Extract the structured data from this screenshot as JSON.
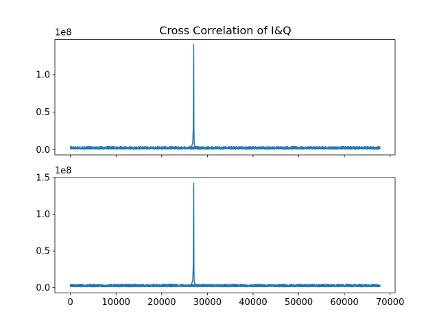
{
  "figure": {
    "title": "Cross Correlation of I&Q"
  },
  "chart_data": [
    {
      "type": "line",
      "title": "Cross Correlation of I&Q",
      "xlabel": "",
      "ylabel": "",
      "y_offset_label": "1e8",
      "y_scale": 100000000,
      "xlim": [
        -3400,
        71100
      ],
      "ylim": [
        -0.07,
        1.47
      ],
      "x_ticks": [
        0,
        10000,
        20000,
        30000,
        40000,
        50000,
        60000,
        70000
      ],
      "x_tick_labels_visible": false,
      "y_ticks": [
        0.0,
        0.5,
        1.0
      ],
      "y_tick_labels": [
        "0.0",
        "0.5",
        "1.0"
      ],
      "grid": false,
      "color": "#1f77b4",
      "series": [
        {
          "x": [
            0,
            5000,
            10000,
            15000,
            20000,
            25000,
            26000,
            26500,
            26800,
            26900,
            27000,
            27050,
            27100,
            27200,
            27500,
            28000,
            30000,
            35000,
            40000,
            45000,
            50000,
            54000,
            55000,
            60000,
            65000,
            67800
          ],
          "values": [
            0.015,
            0.025,
            0.025,
            0.025,
            0.025,
            0.025,
            0.03,
            0.04,
            0.09,
            0.28,
            1.4,
            0.28,
            0.09,
            0.05,
            0.04,
            0.03,
            0.025,
            0.025,
            0.025,
            0.025,
            0.025,
            0.035,
            0.025,
            0.025,
            0.02,
            0.015
          ],
          "noise_band": [
            0.0,
            0.05
          ]
        }
      ]
    },
    {
      "type": "line",
      "title": "",
      "xlabel": "",
      "ylabel": "",
      "y_offset_label": "1e8",
      "y_scale": 100000000,
      "xlim": [
        -3400,
        71100
      ],
      "ylim": [
        -0.07,
        1.5
      ],
      "x_ticks": [
        0,
        10000,
        20000,
        30000,
        40000,
        50000,
        60000,
        70000
      ],
      "x_tick_labels": [
        "0",
        "10000",
        "20000",
        "30000",
        "40000",
        "50000",
        "60000",
        "70000"
      ],
      "y_ticks": [
        0.0,
        0.5,
        1.0,
        1.5
      ],
      "y_tick_labels": [
        "0.0",
        "0.5",
        "1.0",
        "1.5"
      ],
      "grid": false,
      "color": "#1f77b4",
      "series": [
        {
          "x": [
            0,
            5000,
            10000,
            15000,
            20000,
            25000,
            26000,
            26500,
            26800,
            26900,
            27000,
            27050,
            27100,
            27200,
            27500,
            28000,
            30000,
            35000,
            40000,
            45000,
            50000,
            55000,
            60000,
            65000,
            67800
          ],
          "values": [
            0.02,
            0.03,
            0.03,
            0.03,
            0.03,
            0.03,
            0.035,
            0.045,
            0.1,
            0.3,
            1.42,
            0.3,
            0.1,
            0.06,
            0.045,
            0.035,
            0.03,
            0.03,
            0.03,
            0.03,
            0.03,
            0.03,
            0.03,
            0.03,
            0.02
          ],
          "noise_band": [
            0.005,
            0.055
          ]
        }
      ]
    }
  ]
}
